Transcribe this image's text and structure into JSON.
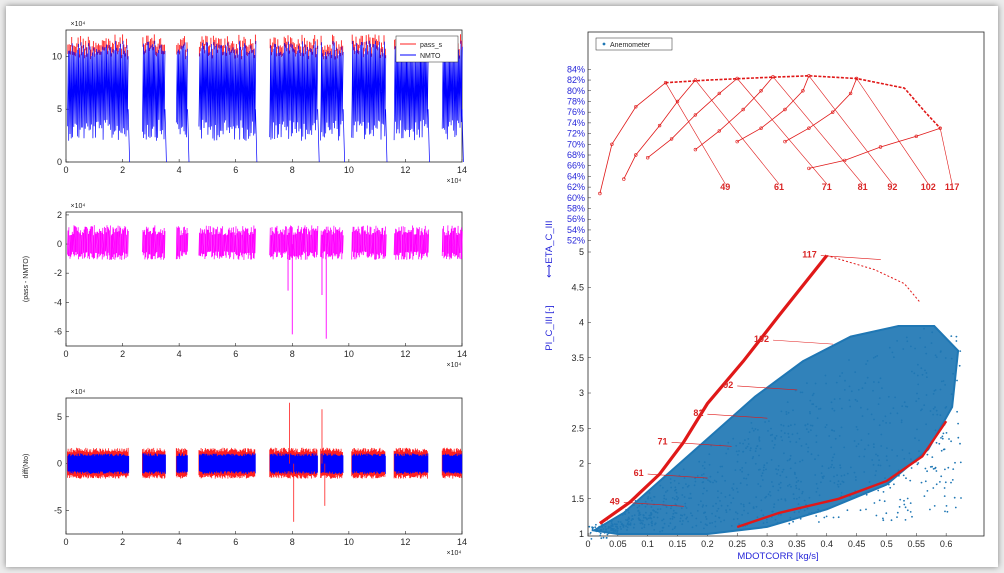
{
  "colors": {
    "blue_signal": "#0000ff",
    "red_signal": "#ff2020",
    "magenta_signal": "#ff00ff",
    "map_red": "#e01818",
    "scatter_blue": "#1f77b4",
    "axis_text": "#262626",
    "axis_label_blue": "#2626d9"
  },
  "plots": {
    "top": {
      "exponent": "×10⁴",
      "x_exponent": "×10⁴",
      "legend": [
        "pass_s",
        "NMTO"
      ]
    },
    "middle": {
      "exponent": "×10⁴",
      "x_exponent": "×10⁴",
      "ylabel": "(pass - NMTO)"
    },
    "bottom": {
      "exponent": "×10⁴",
      "x_exponent": "×10⁴",
      "ylabel": "diff(Nto)"
    },
    "map": {
      "legend": [
        "Anemometer"
      ],
      "eta_label": "ETA_C_III",
      "pi_label": "PI_C_III [-]",
      "arrow_label": "⟷",
      "xlabel": "MDOTCORR [kg/s]"
    }
  },
  "chart_data": [
    {
      "type": "line",
      "title": "",
      "series": [
        {
          "name": "pass_s"
        },
        {
          "name": "NMTO"
        }
      ],
      "x_ticks": [
        "0",
        "2",
        "4",
        "6",
        "8",
        "10",
        "12",
        "14"
      ],
      "y_ticks": [
        "0",
        "5",
        "10"
      ],
      "xlim": [
        0,
        14
      ],
      "ylim": [
        0,
        12.5
      ],
      "x_multiplier": "×10⁴",
      "y_multiplier": "×10⁴",
      "active_segments": [
        [
          0.05,
          2.2
        ],
        [
          2.7,
          3.5
        ],
        [
          3.9,
          4.3
        ],
        [
          4.7,
          6.7
        ],
        [
          7.2,
          8.9
        ],
        [
          9.0,
          9.8
        ],
        [
          10.1,
          11.3
        ],
        [
          11.6,
          12.8
        ],
        [
          13.3,
          14.0
        ]
      ],
      "y_range_when_active": [
        4,
        11.5
      ]
    },
    {
      "type": "line",
      "ylabel": "(pass - NMTO)",
      "x_ticks": [
        "0",
        "2",
        "4",
        "6",
        "8",
        "10",
        "12",
        "14"
      ],
      "y_ticks": [
        "-6",
        "-4",
        "-2",
        "0",
        "2"
      ],
      "xlim": [
        0,
        14
      ],
      "ylim": [
        -7,
        2.2
      ],
      "x_multiplier": "×10⁴",
      "y_multiplier": "×10⁴",
      "band": [
        -0.5,
        0.6
      ],
      "spikes": [
        {
          "x": 7.85,
          "y": -3.2
        },
        {
          "x": 8.0,
          "y": -6.2
        },
        {
          "x": 9.05,
          "y": -3.5
        },
        {
          "x": 9.2,
          "y": -6.5
        }
      ]
    },
    {
      "type": "line",
      "ylabel": "diff(Nto)",
      "x_ticks": [
        "0",
        "2",
        "4",
        "6",
        "8",
        "10",
        "12",
        "14"
      ],
      "y_ticks": [
        "-5",
        "0",
        "5"
      ],
      "xlim": [
        0,
        14
      ],
      "ylim": [
        -7.5,
        7
      ],
      "x_multiplier": "×10⁴",
      "y_multiplier": "×10⁴",
      "band": [
        -0.8,
        0.8
      ],
      "spikes": [
        {
          "x": 7.9,
          "y": 6.5
        },
        {
          "x": 8.05,
          "y": -6.2
        },
        {
          "x": 9.05,
          "y": 5.8
        },
        {
          "x": 9.15,
          "y": -4.5
        }
      ]
    },
    {
      "type": "line",
      "ylabel": "ETA_C_III",
      "y_ticks": [
        "52%",
        "54%",
        "56%",
        "58%",
        "60%",
        "62%",
        "64%",
        "66%",
        "68%",
        "70%",
        "72%",
        "74%",
        "76%",
        "78%",
        "80%",
        "82%",
        "84%"
      ],
      "ylim": [
        51,
        85
      ],
      "xlim": [
        0,
        0.65
      ],
      "legend": [
        "Anemometer"
      ],
      "speed_labels": [
        "49",
        "61",
        "71",
        "81",
        "92",
        "102",
        "117"
      ],
      "speed_label_x": [
        0.23,
        0.32,
        0.4,
        0.46,
        0.51,
        0.57,
        0.61
      ],
      "efficiency_top_curve": [
        [
          0.13,
          81.5
        ],
        [
          0.2,
          82.0
        ],
        [
          0.3,
          82.5
        ],
        [
          0.37,
          82.8
        ],
        [
          0.45,
          82.3
        ],
        [
          0.53,
          80.5
        ],
        [
          0.565,
          76.0
        ],
        [
          0.59,
          73.0
        ]
      ],
      "speed_lines": [
        {
          "speed": "49",
          "points": [
            [
              0.13,
              81.5
            ],
            [
              0.08,
              77.0
            ],
            [
              0.04,
              70.0
            ],
            [
              0.02,
              60.8
            ]
          ]
        },
        {
          "speed": "61",
          "points": [
            [
              0.18,
              82.0
            ],
            [
              0.15,
              78.0
            ],
            [
              0.12,
              73.5
            ],
            [
              0.08,
              68.0
            ],
            [
              0.06,
              63.5
            ]
          ]
        },
        {
          "speed": "71",
          "points": [
            [
              0.25,
              82.3
            ],
            [
              0.22,
              79.5
            ],
            [
              0.18,
              75.5
            ],
            [
              0.14,
              71.0
            ],
            [
              0.1,
              67.5
            ]
          ]
        },
        {
          "speed": "81",
          "points": [
            [
              0.31,
              82.6
            ],
            [
              0.29,
              80.0
            ],
            [
              0.26,
              76.5
            ],
            [
              0.22,
              72.5
            ],
            [
              0.18,
              69.0
            ]
          ]
        },
        {
          "speed": "92",
          "points": [
            [
              0.37,
              82.8
            ],
            [
              0.36,
              80.0
            ],
            [
              0.33,
              76.5
            ],
            [
              0.29,
              73.0
            ],
            [
              0.25,
              70.5
            ]
          ]
        },
        {
          "speed": "102",
          "points": [
            [
              0.45,
              82.3
            ],
            [
              0.44,
              79.5
            ],
            [
              0.41,
              76.0
            ],
            [
              0.37,
              73.0
            ],
            [
              0.33,
              70.5
            ]
          ]
        },
        {
          "speed": "117",
          "points": [
            [
              0.59,
              73.0
            ],
            [
              0.55,
              71.5
            ],
            [
              0.49,
              69.5
            ],
            [
              0.43,
              67.0
            ],
            [
              0.37,
              65.5
            ]
          ]
        }
      ]
    },
    {
      "type": "scatter",
      "title": "",
      "xlabel": "MDOTCORR [kg/s]",
      "ylabel": "PI_C_III [-]",
      "x_ticks": [
        "0",
        "0.05",
        "0.1",
        "0.15",
        "0.2",
        "0.25",
        "0.3",
        "0.35",
        "0.4",
        "0.45",
        "0.5",
        "0.55",
        "0.6"
      ],
      "y_ticks": [
        "1",
        "1.5",
        "2",
        "2.5",
        "3",
        "3.5",
        "4",
        "4.5",
        "5"
      ],
      "xlim": [
        0,
        0.65
      ],
      "ylim": [
        1,
        5
      ],
      "surge_line": [
        [
          0.02,
          1.15
        ],
        [
          0.07,
          1.45
        ],
        [
          0.12,
          1.85
        ],
        [
          0.16,
          2.3
        ],
        [
          0.2,
          2.85
        ],
        [
          0.26,
          3.45
        ],
        [
          0.32,
          4.1
        ],
        [
          0.4,
          4.95
        ]
      ],
      "choke_line": [
        [
          0.4,
          4.95
        ],
        [
          0.48,
          4.75
        ],
        [
          0.53,
          4.55
        ],
        [
          0.555,
          4.3
        ]
      ],
      "lower_boundary": [
        [
          0.25,
          1.1
        ],
        [
          0.32,
          1.3
        ],
        [
          0.42,
          1.5
        ],
        [
          0.5,
          1.75
        ],
        [
          0.56,
          2.1
        ],
        [
          0.6,
          2.6
        ]
      ],
      "speed_line_pairs": [
        {
          "speed": "49",
          "at": [
            0.06,
            1.45
          ]
        },
        {
          "speed": "61",
          "at": [
            0.1,
            1.85
          ]
        },
        {
          "speed": "71",
          "at": [
            0.14,
            2.3
          ]
        },
        {
          "speed": "81",
          "at": [
            0.2,
            2.7
          ]
        },
        {
          "speed": "92",
          "at": [
            0.25,
            3.1
          ]
        },
        {
          "speed": "102",
          "at": [
            0.31,
            3.75
          ]
        },
        {
          "speed": "117",
          "at": [
            0.39,
            4.95
          ]
        }
      ],
      "cloud_outline": [
        [
          0.01,
          1.05
        ],
        [
          0.06,
          1.3
        ],
        [
          0.12,
          1.75
        ],
        [
          0.2,
          2.35
        ],
        [
          0.28,
          2.95
        ],
        [
          0.36,
          3.45
        ],
        [
          0.44,
          3.8
        ],
        [
          0.52,
          3.95
        ],
        [
          0.58,
          3.95
        ],
        [
          0.62,
          3.6
        ],
        [
          0.61,
          2.8
        ],
        [
          0.57,
          2.2
        ],
        [
          0.5,
          1.7
        ],
        [
          0.4,
          1.35
        ],
        [
          0.3,
          1.1
        ],
        [
          0.2,
          1.0
        ],
        [
          0.05,
          1.0
        ]
      ]
    }
  ]
}
